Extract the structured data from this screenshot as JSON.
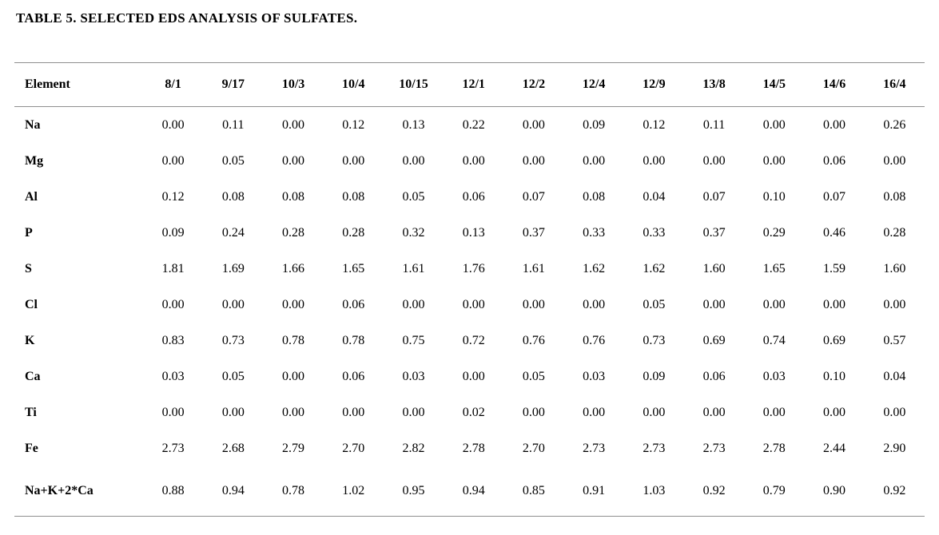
{
  "title": "TABLE 5. SELECTED EDS ANALYSIS OF SULFATES.",
  "chart_data": {
    "type": "table",
    "title": "TABLE 5. SELECTED EDS ANALYSIS OF SULFATES.",
    "columns": [
      "Element",
      "8/1",
      "9/17",
      "10/3",
      "10/4",
      "10/15",
      "12/1",
      "12/2",
      "12/4",
      "12/9",
      "13/8",
      "14/5",
      "14/6",
      "16/4"
    ],
    "rows": [
      [
        "Na",
        "0.00",
        "0.11",
        "0.00",
        "0.12",
        "0.13",
        "0.22",
        "0.00",
        "0.09",
        "0.12",
        "0.11",
        "0.00",
        "0.00",
        "0.26"
      ],
      [
        "Mg",
        "0.00",
        "0.05",
        "0.00",
        "0.00",
        "0.00",
        "0.00",
        "0.00",
        "0.00",
        "0.00",
        "0.00",
        "0.00",
        "0.06",
        "0.00"
      ],
      [
        "Al",
        "0.12",
        "0.08",
        "0.08",
        "0.08",
        "0.05",
        "0.06",
        "0.07",
        "0.08",
        "0.04",
        "0.07",
        "0.10",
        "0.07",
        "0.08"
      ],
      [
        "P",
        "0.09",
        "0.24",
        "0.28",
        "0.28",
        "0.32",
        "0.13",
        "0.37",
        "0.33",
        "0.33",
        "0.37",
        "0.29",
        "0.46",
        "0.28"
      ],
      [
        "S",
        "1.81",
        "1.69",
        "1.66",
        "1.65",
        "1.61",
        "1.76",
        "1.61",
        "1.62",
        "1.62",
        "1.60",
        "1.65",
        "1.59",
        "1.60"
      ],
      [
        "Cl",
        "0.00",
        "0.00",
        "0.00",
        "0.06",
        "0.00",
        "0.00",
        "0.00",
        "0.00",
        "0.05",
        "0.00",
        "0.00",
        "0.00",
        "0.00"
      ],
      [
        "K",
        "0.83",
        "0.73",
        "0.78",
        "0.78",
        "0.75",
        "0.72",
        "0.76",
        "0.76",
        "0.73",
        "0.69",
        "0.74",
        "0.69",
        "0.57"
      ],
      [
        "Ca",
        "0.03",
        "0.05",
        "0.00",
        "0.06",
        "0.03",
        "0.00",
        "0.05",
        "0.03",
        "0.09",
        "0.06",
        "0.03",
        "0.10",
        "0.04"
      ],
      [
        "Ti",
        "0.00",
        "0.00",
        "0.00",
        "0.00",
        "0.00",
        "0.02",
        "0.00",
        "0.00",
        "0.00",
        "0.00",
        "0.00",
        "0.00",
        "0.00"
      ],
      [
        "Fe",
        "2.73",
        "2.68",
        "2.79",
        "2.70",
        "2.82",
        "2.78",
        "2.70",
        "2.73",
        "2.73",
        "2.73",
        "2.78",
        "2.44",
        "2.90"
      ],
      [
        "Na+K+2*Ca",
        "0.88",
        "0.94",
        "0.78",
        "1.02",
        "0.95",
        "0.94",
        "0.85",
        "0.91",
        "1.03",
        "0.92",
        "0.79",
        "0.90",
        "0.92"
      ]
    ],
    "layout": {
      "rule_color": "#8f8f8f",
      "text_color": "#000000",
      "background": "#ffffff"
    }
  }
}
